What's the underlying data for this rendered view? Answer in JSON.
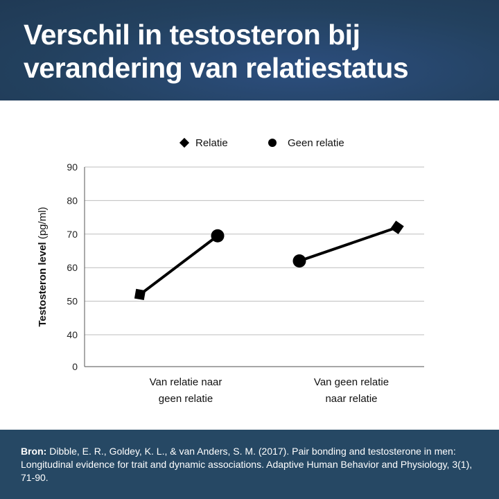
{
  "header": {
    "title_line1": "Verschil in testosteron bij",
    "title_line2": "verandering van relatiestatus"
  },
  "footer": {
    "label": "Bron:",
    "text": " Dibble, E. R., Goldey, K. L., & van Anders, S. M. (2017). Pair bonding and testosterone in men: Longitudinal evidence for trait and dynamic associations. Adaptive Human Behavior and Physiology, 3(1), 71-90."
  },
  "chart_data": {
    "type": "line",
    "title": "",
    "ylabel_bold": "Testosteron level",
    "ylabel_unit": " (pg/ml)",
    "yticks": [
      0,
      40,
      50,
      60,
      70,
      80,
      90
    ],
    "ylim": [
      0,
      90
    ],
    "axis_break": "0 to 40",
    "grid": true,
    "legend": {
      "placement": "top",
      "entries": [
        {
          "name": "Relatie",
          "marker": "diamond"
        },
        {
          "name": "Geen relatie",
          "marker": "circle"
        }
      ]
    },
    "categories": [
      {
        "label_line1": "Van relatie naar",
        "label_line2": "geen relatie",
        "points": [
          {
            "series": "Relatie",
            "value": 52
          },
          {
            "series": "Geen relatie",
            "value": 69.5
          }
        ]
      },
      {
        "label_line1": "Van geen relatie",
        "label_line2": "naar relatie",
        "points": [
          {
            "series": "Geen relatie",
            "value": 62
          },
          {
            "series": "Relatie",
            "value": 72
          }
        ]
      }
    ]
  }
}
